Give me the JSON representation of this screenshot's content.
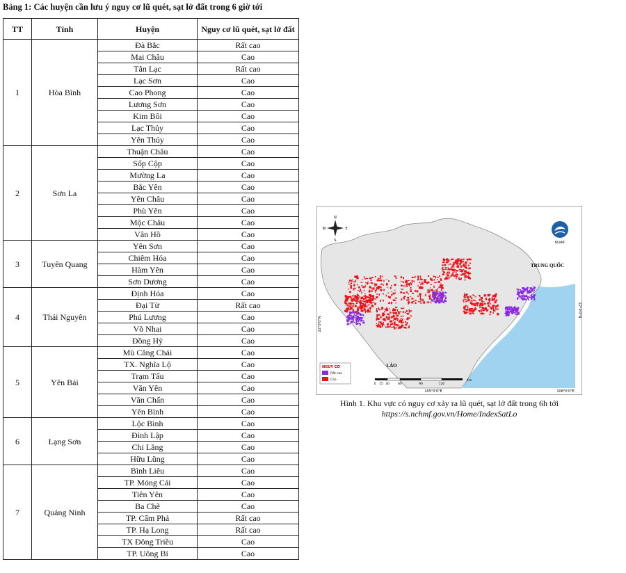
{
  "title": "Bảng 1: Các huyện cần lưu ý nguy cơ lũ quét, sạt lở đất trong 6 giờ tới",
  "headers": {
    "tt": "TT",
    "province": "Tỉnh",
    "district": "Huyện",
    "risk": "Nguy cơ lũ quét, sạt lở đất"
  },
  "provinces": [
    {
      "tt": "1",
      "name": "Hòa Bình",
      "districts": [
        {
          "name": "Đà Bắc",
          "risk": "Rất cao"
        },
        {
          "name": "Mai Châu",
          "risk": "Cao"
        },
        {
          "name": "Tân Lạc",
          "risk": "Rất cao"
        },
        {
          "name": "Lạc Sơn",
          "risk": "Cao"
        },
        {
          "name": "Cao Phong",
          "risk": "Cao"
        },
        {
          "name": "Lương Sơn",
          "risk": "Cao"
        },
        {
          "name": "Kim Bôi",
          "risk": "Cao"
        },
        {
          "name": "Lạc Thủy",
          "risk": "Cao"
        },
        {
          "name": "Yên Thủy",
          "risk": "Cao"
        }
      ]
    },
    {
      "tt": "2",
      "name": "Sơn La",
      "districts": [
        {
          "name": "Thuận Châu",
          "risk": "Cao"
        },
        {
          "name": "Sốp Cộp",
          "risk": "Cao"
        },
        {
          "name": "Mường La",
          "risk": "Cao"
        },
        {
          "name": "Bắc Yên",
          "risk": "Cao"
        },
        {
          "name": "Yên Châu",
          "risk": "Cao"
        },
        {
          "name": "Phù Yên",
          "risk": "Cao"
        },
        {
          "name": "Mộc Châu",
          "risk": "Cao"
        },
        {
          "name": "Vân Hồ",
          "risk": "Cao"
        }
      ]
    },
    {
      "tt": "3",
      "name": "Tuyên Quang",
      "districts": [
        {
          "name": "Yên Sơn",
          "risk": "Cao"
        },
        {
          "name": "Chiêm Hóa",
          "risk": "Cao"
        },
        {
          "name": "Hàm Yên",
          "risk": "Cao"
        },
        {
          "name": "Sơn Dương",
          "risk": "Cao"
        }
      ]
    },
    {
      "tt": "4",
      "name": "Thái Nguyên",
      "districts": [
        {
          "name": "Định Hóa",
          "risk": "Cao"
        },
        {
          "name": "Đại Từ",
          "risk": "Rất cao"
        },
        {
          "name": "Phú Lương",
          "risk": "Cao"
        },
        {
          "name": "Võ Nhai",
          "risk": "Cao"
        },
        {
          "name": "Đồng Hỷ",
          "risk": "Cao"
        }
      ]
    },
    {
      "tt": "5",
      "name": "Yên Bái",
      "districts": [
        {
          "name": "Mù Căng Chải",
          "risk": "Cao"
        },
        {
          "name": "TX. Nghĩa Lộ",
          "risk": "Cao"
        },
        {
          "name": "Trạm Tấu",
          "risk": "Cao"
        },
        {
          "name": "Văn Yên",
          "risk": "Cao"
        },
        {
          "name": "Văn Chấn",
          "risk": "Cao"
        },
        {
          "name": "Yên Bình",
          "risk": "Cao"
        }
      ]
    },
    {
      "tt": "6",
      "name": "Lạng Sơn",
      "districts": [
        {
          "name": "Lộc Bình",
          "risk": "Cao"
        },
        {
          "name": "Đình Lập",
          "risk": "Cao"
        },
        {
          "name": "Chi Lăng",
          "risk": "Cao"
        },
        {
          "name": "Hữu Lũng",
          "risk": "Cao"
        }
      ]
    },
    {
      "tt": "7",
      "name": "Quảng Ninh",
      "districts": [
        {
          "name": "Bình Liêu",
          "risk": "Cao"
        },
        {
          "name": "TP. Móng Cái",
          "risk": "Cao"
        },
        {
          "name": "Tiên Yên",
          "risk": "Cao"
        },
        {
          "name": "Ba Chẽ",
          "risk": "Cao"
        },
        {
          "name": "TP. Cẩm Phả",
          "risk": "Rất cao"
        },
        {
          "name": "TP. Hạ Long",
          "risk": "Rất cao"
        },
        {
          "name": "TX Đông Triều",
          "risk": "Cao"
        },
        {
          "name": "TP. Uông Bí",
          "risk": "Cao"
        }
      ]
    }
  ],
  "map": {
    "lon_left": "105°0'0\"E",
    "lon_right": "108°0'0\"E",
    "lat_left": "22°0'0\"N",
    "lat_right": "22°0'0\"N",
    "country_north": "TRUNG QUỐC",
    "country_south": "LÀO",
    "logo_text": "NCHMF",
    "legend_title": "NGUY CƠ",
    "legend_items": [
      {
        "label": "Rất cao",
        "color": "#8a2be2"
      },
      {
        "label": "Cao",
        "color": "#e8141a"
      }
    ],
    "scale_labels": [
      "0",
      "15",
      "30",
      "60",
      "90",
      "120"
    ],
    "scale_unit": "Km",
    "colors": {
      "sea": "#9fd3ef",
      "land": "#e6e6e6",
      "border": "#8a8a8a"
    }
  },
  "caption": "Hình 1. Khu vực có nguy cơ xảy ra lũ quét, sạt lở đất trong 6h tới",
  "source_url": "https://s.nchmf.gov.vn/Home/IndexSatLo"
}
